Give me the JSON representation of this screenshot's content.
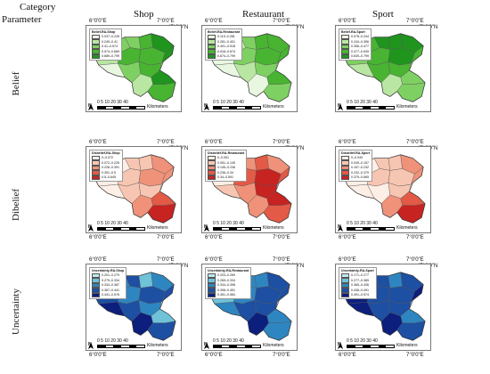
{
  "header": {
    "category_label": "Category",
    "parameter_label": "Parameter",
    "categories": [
      "Shop",
      "Restaurant",
      "Sport"
    ]
  },
  "rows": [
    {
      "label": "Belief",
      "palette": [
        "#e9f7e1",
        "#b9e6a2",
        "#7fd062",
        "#48b432",
        "#1f951e"
      ],
      "panels": [
        {
          "legend_title": "Belief-RA-Shop",
          "classes": [
            "0.037–0.249",
            "0.249–0.41",
            "0.41–0.574",
            "0.574–0.689",
            "0.689–0.799"
          ]
        },
        {
          "legend_title": "Belief-RA-Restaurant",
          "classes": [
            "0.119–0.281",
            "0.281–0.401",
            "0.401–0.518",
            "0.518–0.674",
            "0.674–0.799"
          ]
        },
        {
          "legend_title": "Belief-RA-Sport",
          "classes": [
            "0.076–0.244",
            "0.244–0.356",
            "0.356–0.477",
            "0.477–0.639",
            "0.639–0.799"
          ]
        }
      ]
    },
    {
      "label": "Dibelief",
      "palette": [
        "#fdeee6",
        "#f7c6b2",
        "#ef9279",
        "#e35a46",
        "#c62321"
      ],
      "panels": [
        {
          "legend_title": "Disbelief-RA-Shop",
          "classes": [
            "0–0.072",
            "0.072–0.226",
            "0.226–0.391",
            "0.391–0.5",
            "0.5–0.645"
          ]
        },
        {
          "legend_title": "Disbelief-RA-Restaurant",
          "classes": [
            "0–0.051",
            "0.051–0.145",
            "0.145–0.236",
            "0.236–0.34",
            "0.34–0.591"
          ]
        },
        {
          "legend_title": "Disbelief-RA-Sport",
          "classes": [
            "0–0.049",
            "0.049–0.157",
            "0.157–0.232",
            "0.232–0.379",
            "0.379–0.665"
          ]
        }
      ]
    },
    {
      "label": "Uncertainty",
      "palette": [
        "#bfe9ee",
        "#6fc2d8",
        "#2e86c1",
        "#1d4fa2",
        "#0c1f7d"
      ],
      "panels": [
        {
          "legend_title": "Uncertainty-RA-Shop",
          "classes": [
            "0.201–0.279",
            "0.279–0.334",
            "0.334–0.387",
            "0.387–0.441",
            "0.441–0.576"
          ]
        },
        {
          "legend_title": "Uncertainty-RA-Restaurant",
          "classes": [
            "0.203–0.269",
            "0.269–0.334",
            "0.334–0.398",
            "0.398–0.451",
            "0.451–0.584"
          ]
        },
        {
          "legend_title": "Uncertainty-RA-Sport",
          "classes": [
            "0.171–0.277",
            "0.277–0.365",
            "0.365–0.436",
            "0.436–0.491",
            "0.491–0.574"
          ]
        }
      ]
    }
  ],
  "map_labels": {
    "lon_left": "6°0'0\"E",
    "lon_right": "7°0'0\"E",
    "lat": "47°0'0\"N",
    "north": "N",
    "scale_ticks": "0 5 10  20  30  40",
    "scale_unit": "Kilometers"
  },
  "colors": {
    "outline": "#555555",
    "border_gray": "#777777"
  }
}
